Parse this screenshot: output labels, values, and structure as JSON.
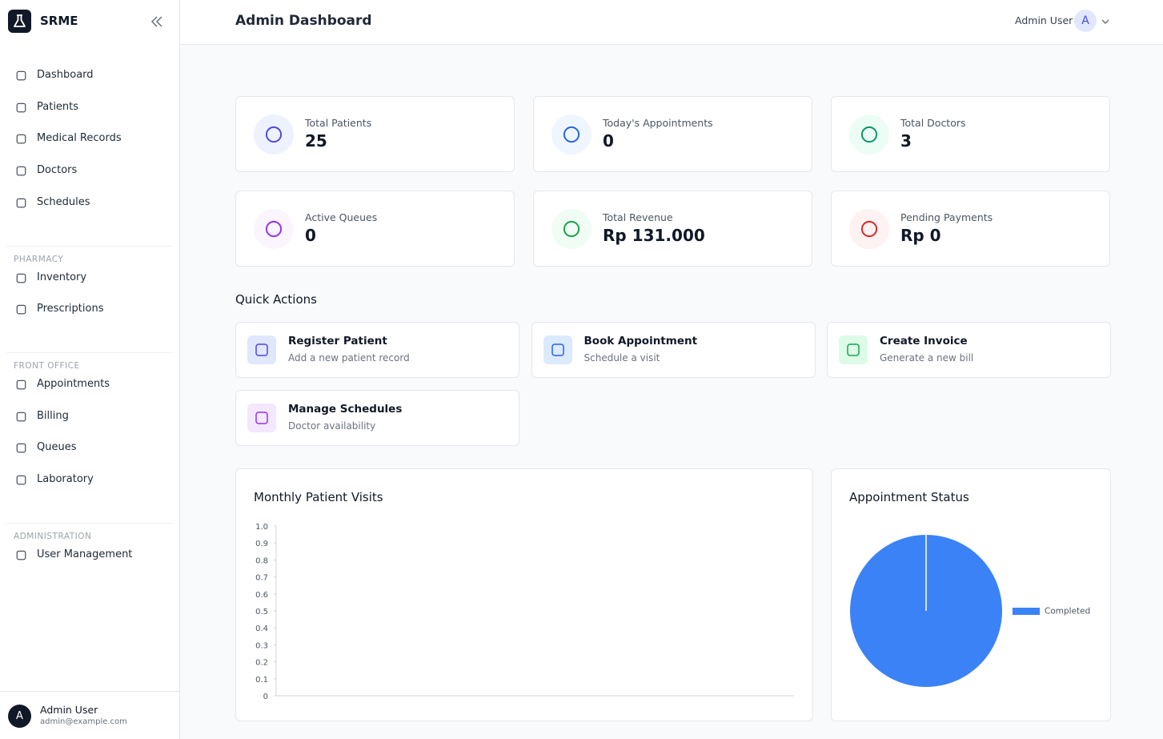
{
  "sidebar": {
    "brand": "SRME",
    "groups": [
      {
        "items": [
          "Dashboard",
          "Patients",
          "Medical Records",
          "Doctors",
          "Schedules"
        ]
      },
      {
        "heading": "PHARMACY",
        "items": [
          "Inventory",
          "Prescriptions"
        ]
      },
      {
        "heading": "FRONT OFFICE",
        "items": [
          "Appointments",
          "Billing",
          "Queues",
          "Laboratory"
        ]
      },
      {
        "heading": "ADMINISTRATION",
        "items": [
          "User Management"
        ]
      }
    ],
    "user": {
      "avatar": "A",
      "name": "Admin User",
      "email": "admin@example.com"
    }
  },
  "header": {
    "title": "Admin Dashboard",
    "user": "Admin User",
    "avatar": "A"
  },
  "stats": [
    {
      "label": "Total Patients",
      "value": 25
    },
    {
      "label": "Today's Appointments",
      "value": 0
    },
    {
      "label": "Total Doctors",
      "value": 3
    },
    {
      "label": "Active Queues",
      "value": 0
    },
    {
      "label": "Total Revenue",
      "value": "Rp 131.000"
    },
    {
      "label": "Pending Payments",
      "value": "Rp 0"
    }
  ],
  "quick_actions": {
    "title": "Quick Actions",
    "items": [
      {
        "title": "Register Patient",
        "subtitle": "Add a new patient record"
      },
      {
        "title": "Book Appointment",
        "subtitle": "Schedule a visit"
      },
      {
        "title": "Create Invoice",
        "subtitle": "Generate a new bill"
      },
      {
        "title": "Manage Schedules",
        "subtitle": "Doctor availability"
      }
    ]
  },
  "chart_data": [
    {
      "type": "line",
      "title": "Monthly Patient Visits",
      "ylim": [
        0,
        1
      ],
      "yticks": [
        0,
        0.1,
        0.2,
        0.3,
        0.4,
        0.5,
        0.6,
        0.7,
        0.8,
        0.9,
        {
          "value": 1,
          "label": "1.0"
        }
      ]
    },
    {
      "type": "pie",
      "title": "Appointment Status",
      "categories": [
        "Completed"
      ],
      "values": [
        100
      ],
      "colors": [
        "#3b82f6"
      ],
      "legend": "right"
    }
  ]
}
